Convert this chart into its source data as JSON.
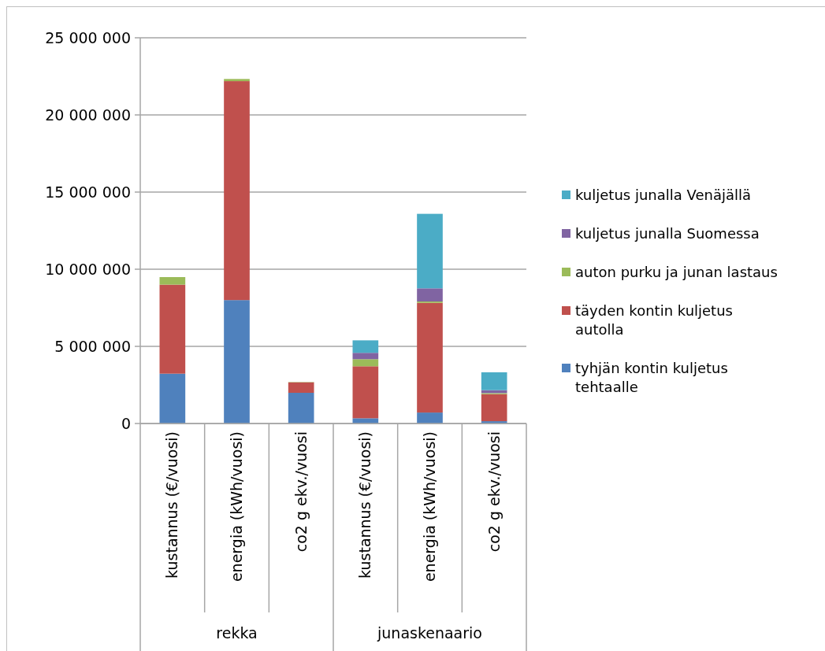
{
  "chart_data": {
    "type": "bar",
    "stacked": true,
    "categories": [
      "kustannus (€/vuosi)",
      "energia (kWh/vuosi)",
      "co2 g ekv./vuosi",
      "kustannus (€/vuosi)",
      "energia (kWh/vuosi)",
      "co2 g ekv./vuosi"
    ],
    "series": [
      {
        "name": "tyhjän kontin kuljetus tehtaalle",
        "color": "#4f81bd",
        "values": [
          3230000,
          8000000,
          1990000,
          340000,
          710000,
          150000
        ]
      },
      {
        "name": "täyden kontin kuljetus autolla",
        "color": "#c0504d",
        "values": [
          5770000,
          14190000,
          680000,
          3370000,
          7110000,
          1750000
        ]
      },
      {
        "name": "auton purku ja junan lastaus",
        "color": "#9bbb59",
        "values": [
          490000,
          140000,
          20000,
          460000,
          90000,
          70000
        ]
      },
      {
        "name": "kuljetus junalla Suomessa",
        "color": "#8064a2",
        "values": [
          0,
          0,
          0,
          410000,
          850000,
          190000
        ]
      },
      {
        "name": "kuljetus junalla Venäjällä",
        "color": "#4bacc6",
        "values": [
          0,
          0,
          0,
          810000,
          4830000,
          1160000
        ]
      }
    ],
    "annotations": [
      "rekka",
      "junaskenaario"
    ],
    "ylim": [
      0,
      25000000
    ],
    "yticks": [
      0,
      {
        "value": 5000000,
        "label": "5 000 000"
      },
      {
        "value": 10000000,
        "label": "10 000 000"
      },
      {
        "value": 15000000,
        "label": "15 000 000"
      },
      {
        "value": 20000000,
        "label": "20 000 000"
      },
      {
        "value": 25000000,
        "label": "25 000 000"
      }
    ],
    "grid": "y",
    "legend": "right"
  }
}
